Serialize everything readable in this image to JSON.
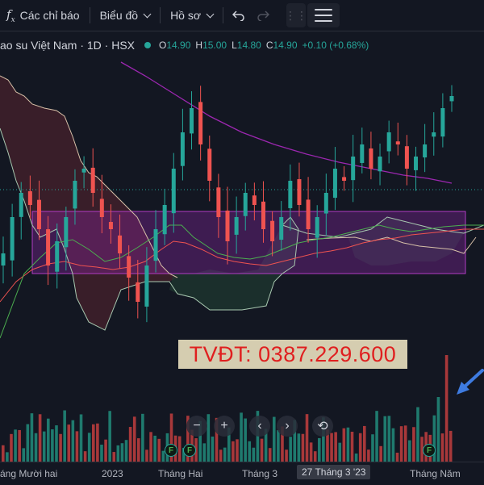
{
  "toolbar": {
    "indicators_label": "Các chỉ báo",
    "chart_type_label": "Biểu đồ",
    "profile_label": "Hồ sơ"
  },
  "legend": {
    "title": "ao su Việt Nam · 1D · HSX",
    "o_key": "O",
    "o_val": "14.90",
    "h_key": "H",
    "h_val": "15.00",
    "l_key": "L",
    "l_val": "14.80",
    "c_key": "C",
    "c_val": "14.90",
    "change": "+0.10 (+0.68%)"
  },
  "promo": {
    "text": "TVĐT: 0387.229.600"
  },
  "nav": {
    "zoom_out": "−",
    "zoom_in": "+",
    "back": "‹",
    "forward": "›",
    "reset": "⟲"
  },
  "axis": {
    "labels": [
      "áng Mười hai",
      "2023",
      "Tháng Hai",
      "Tháng 3",
      "27 Tháng 3 '23",
      "Tháng Năm"
    ]
  },
  "badges": {
    "f": "F"
  },
  "colors": {
    "up": "#26a69a",
    "down": "#ef5350",
    "cloud_bear": "#5a2430",
    "cloud_bull": "#1f3a30",
    "ma_long": "#9c27b0",
    "box": "#b03cc4"
  },
  "chart_data": {
    "type": "candlestick",
    "series": [
      {
        "values": [
          13.6,
          13.9,
          14.1,
          14.0,
          13.8,
          13.5,
          13.7,
          13.9,
          14.2,
          14.3,
          14.1,
          13.9,
          13.8,
          13.6,
          13.4,
          13.2,
          13.5,
          13.8,
          14.0,
          14.3,
          14.6,
          14.8,
          14.5,
          14.2,
          13.9,
          13.7,
          13.9,
          14.1,
          14.0,
          13.8,
          13.7,
          13.9,
          14.2,
          14.0,
          13.8,
          13.9,
          14.1,
          14.3,
          14.2,
          14.4,
          14.5,
          14.3,
          14.4,
          14.6,
          14.5,
          14.3,
          14.4,
          14.5,
          14.6,
          14.8,
          14.9
        ]
      }
    ]
  }
}
